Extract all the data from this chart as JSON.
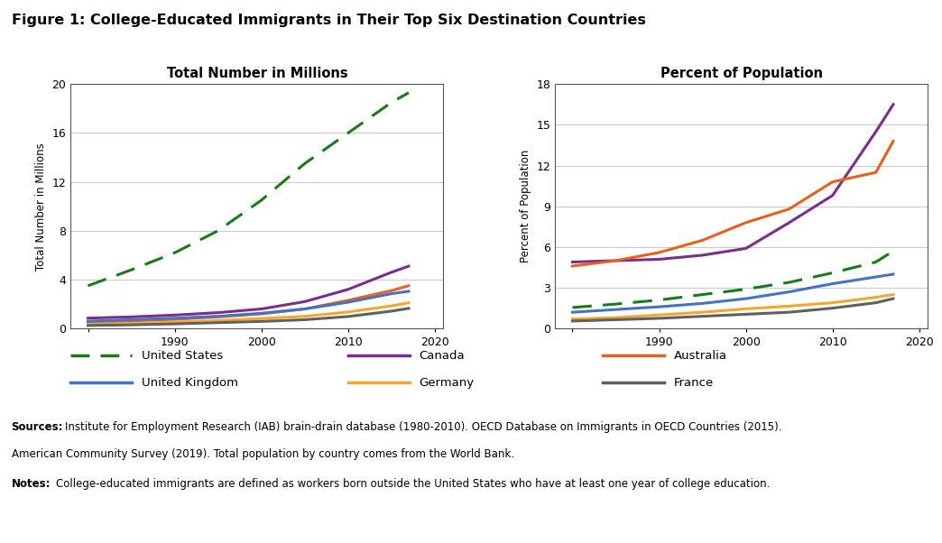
{
  "title": "Figure 1: College-Educated Immigrants in Their Top Six Destination Countries",
  "left_title": "Total Number in Millions",
  "right_title": "Percent of Population",
  "left_ylabel": "Total Number in Millions",
  "right_ylabel": "Percent of Population",
  "years": [
    1980,
    1985,
    1990,
    1995,
    2000,
    2005,
    2010,
    2015,
    2017
  ],
  "left": {
    "United States": [
      3.5,
      4.8,
      6.2,
      8.0,
      10.5,
      13.5,
      16.0,
      18.5,
      19.3
    ],
    "Canada": [
      0.85,
      0.95,
      1.1,
      1.3,
      1.6,
      2.2,
      3.2,
      4.6,
      5.1
    ],
    "Australia": [
      0.5,
      0.62,
      0.75,
      0.95,
      1.2,
      1.6,
      2.3,
      3.1,
      3.5
    ],
    "United Kingdom": [
      0.6,
      0.72,
      0.85,
      1.0,
      1.25,
      1.6,
      2.15,
      2.85,
      3.05
    ],
    "Germany": [
      0.35,
      0.42,
      0.52,
      0.65,
      0.82,
      1.0,
      1.35,
      1.85,
      2.1
    ],
    "France": [
      0.25,
      0.3,
      0.38,
      0.48,
      0.58,
      0.72,
      0.98,
      1.42,
      1.65
    ]
  },
  "right": {
    "Canada": [
      4.9,
      5.0,
      5.1,
      5.4,
      5.9,
      7.8,
      9.8,
      14.5,
      16.5
    ],
    "Australia": [
      4.6,
      5.0,
      5.6,
      6.5,
      7.8,
      8.8,
      10.8,
      11.5,
      13.8
    ],
    "United States": [
      1.55,
      1.8,
      2.1,
      2.5,
      2.9,
      3.4,
      4.1,
      4.9,
      5.7
    ],
    "United Kingdom": [
      1.2,
      1.4,
      1.6,
      1.85,
      2.2,
      2.7,
      3.3,
      3.8,
      4.0
    ],
    "Germany": [
      0.7,
      0.8,
      1.0,
      1.2,
      1.45,
      1.65,
      1.9,
      2.3,
      2.5
    ],
    "France": [
      0.55,
      0.65,
      0.75,
      0.9,
      1.05,
      1.2,
      1.5,
      1.9,
      2.2
    ]
  },
  "colors": {
    "United States": "#1a7a1a",
    "Canada": "#7b2d8b",
    "Australia": "#e8601c",
    "United Kingdom": "#4472c4",
    "Germany": "#f0a830",
    "France": "#606060"
  },
  "left_ylim": [
    0,
    20
  ],
  "left_yticks": [
    0,
    4,
    8,
    12,
    16,
    20
  ],
  "right_ylim": [
    0,
    18
  ],
  "right_yticks": [
    0,
    3,
    6,
    9,
    12,
    15,
    18
  ],
  "xlim": [
    1978,
    2021
  ],
  "xticks": [
    1980,
    1990,
    2000,
    2010,
    2020
  ],
  "xtick_labels": [
    "",
    "1990",
    "2000",
    "2010",
    "2020"
  ],
  "sources_line1": "Sources: Institute for Employment Research (IAB) brain-drain database (1980-2010). OECD Database on Immigrants in OECD Countries (2015).",
  "sources_line2": "American Community Survey (2019). Total population by country comes from the World Bank.",
  "notes_text": "Notes: College-educated immigrants are defined as workers born outside the United States who have at least one year of college education.",
  "legend_order": [
    "United States",
    "Canada",
    "Australia",
    "United Kingdom",
    "Germany",
    "France"
  ]
}
